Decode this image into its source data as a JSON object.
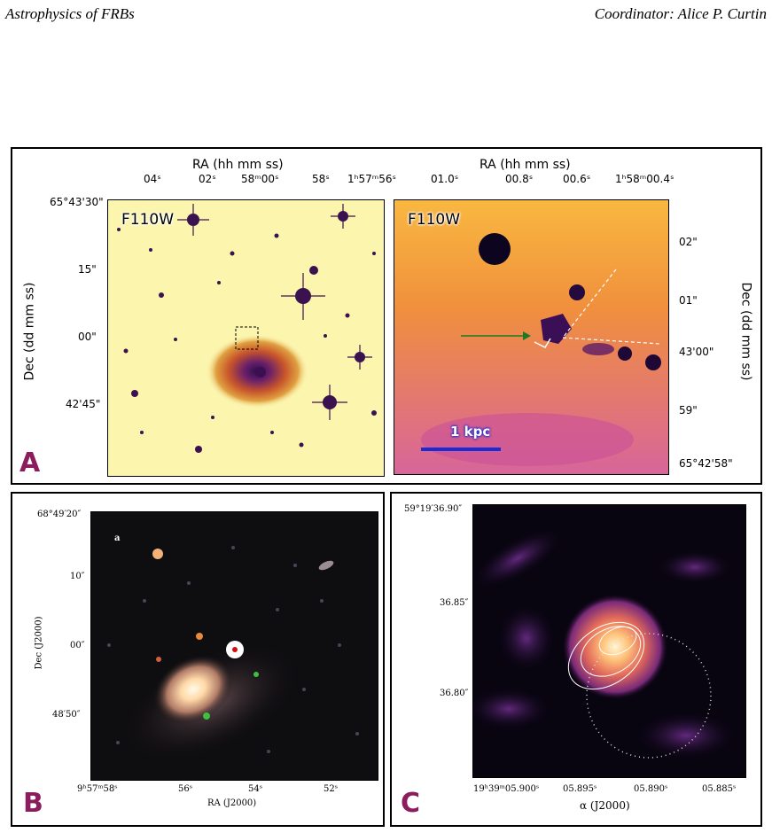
{
  "header": {
    "left": "Astrophysics of FRBs",
    "right": "Coordinator: Alice P. Curtin"
  },
  "panelA": {
    "label": "A",
    "left": {
      "ra_title": "RA (hh mm ss)",
      "ra_ticks": [
        "04",
        "02",
        "58",
        "58",
        "1"
      ],
      "ra_tick_labels": [
        "04ˢ",
        "02ˢ",
        "58ᵐ00ˢ",
        "58ˢ",
        "1ʰ57ᵐ56ˢ"
      ],
      "dec_tick_labels": [
        "65°43'30\"",
        "15\"",
        "00\"",
        "42'45\""
      ],
      "dec_title": "Dec (dd mm ss)",
      "filter": "F110W"
    },
    "right": {
      "ra_title": "RA (hh mm ss)",
      "ra_tick_labels": [
        "01.0ˢ",
        "00.8ˢ",
        "00.6ˢ",
        "1ʰ58ᵐ00.4ˢ"
      ],
      "dec_tick_labels": [
        "02\"",
        "01\"",
        "43'00\"",
        "59\"",
        "65°42'58\""
      ],
      "dec_title": "Dec (dd mm ss)",
      "filter": "F110W",
      "scale_label": "1 kpc"
    }
  },
  "panelB": {
    "label": "B",
    "inset_label": "a",
    "dec_tick_labels": [
      "68°49′20″",
      "10″",
      "00″",
      "48′50″"
    ],
    "dec_title": "Dec (J2000)",
    "ra_tick_labels": [
      "9ʰ57ᵐ58ˢ",
      "56ˢ",
      "54ˢ",
      "52ˢ"
    ],
    "ra_title": "RA (J2000)"
  },
  "panelC": {
    "label": "C",
    "dec_tick_labels": [
      "59°19′36.90″",
      "36.85″",
      "36.80″"
    ],
    "ra_tick_labels": [
      "19ʰ39ᵐ05.900ˢ",
      "05.895ˢ",
      "05.890ˢ",
      "05.885ˢ"
    ],
    "ra_title": "α (J2000)"
  },
  "colors": {
    "label": "#8b1d5c",
    "scalebar": "#1b2bd4",
    "arrow": "#1f7a1f"
  }
}
